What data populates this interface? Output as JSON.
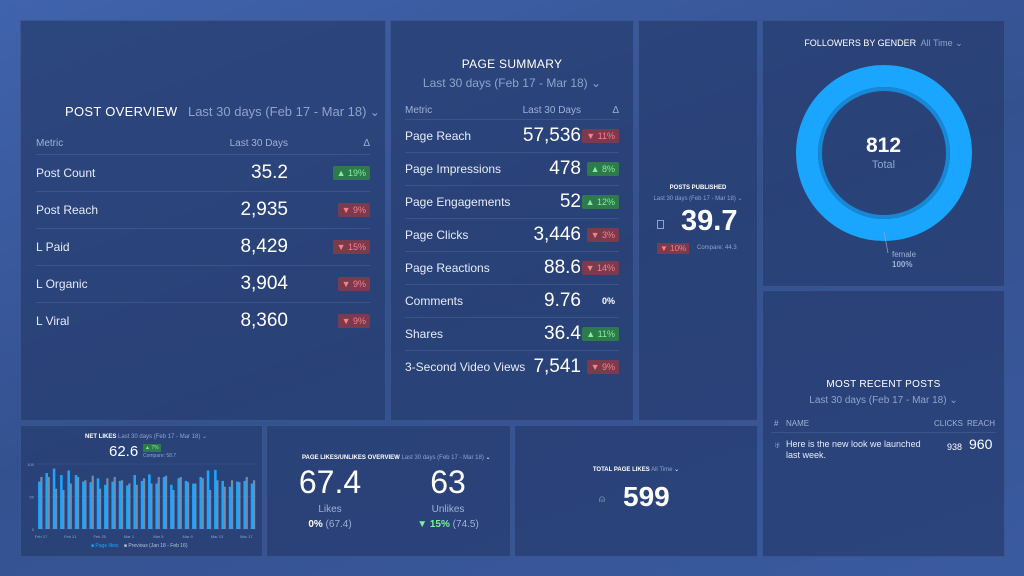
{
  "colors": {
    "accent": "#1aa6ff",
    "up": "#7ef09a",
    "down": "#ff7d86",
    "previous": "#7d8aa6"
  },
  "post_overview": {
    "title": "POST OVERVIEW",
    "range": "Last 30 days (Feb 17 - Mar 18)",
    "col_metric": "Metric",
    "col_value": "Last 30 Days",
    "col_delta": "Δ",
    "rows": [
      {
        "metric": "Post Count",
        "value": "35.2",
        "delta": "▲ 19%",
        "dir": "up"
      },
      {
        "metric": "Post Reach",
        "value": "2,935",
        "delta": "▼ 9%",
        "dir": "down"
      },
      {
        "metric": "L Paid",
        "value": "8,429",
        "delta": "▼ 15%",
        "dir": "down"
      },
      {
        "metric": "L Organic",
        "value": "3,904",
        "delta": "▼ 9%",
        "dir": "down"
      },
      {
        "metric": "L Viral",
        "value": "8,360",
        "delta": "▼ 9%",
        "dir": "down"
      }
    ]
  },
  "page_summary": {
    "title": "PAGE SUMMARY",
    "range": "Last 30 days (Feb 17 - Mar 18)",
    "col_metric": "Metric",
    "col_value": "Last 30 Days",
    "col_delta": "Δ",
    "rows": [
      {
        "metric": "Page Reach",
        "value": "57,536",
        "delta": "▼ 11%",
        "dir": "down"
      },
      {
        "metric": "Page Impressions",
        "value": "478",
        "delta": "▲ 8%",
        "dir": "up"
      },
      {
        "metric": "Page Engagements",
        "value": "52",
        "delta": "▲ 12%",
        "dir": "up"
      },
      {
        "metric": "Page Clicks",
        "value": "3,446",
        "delta": "▼ 3%",
        "dir": "down"
      },
      {
        "metric": "Page Reactions",
        "value": "88.6",
        "delta": "▼ 14%",
        "dir": "down"
      },
      {
        "metric": "Comments",
        "value": "9.76",
        "delta": "0%",
        "dir": "neutral"
      },
      {
        "metric": "Shares",
        "value": "36.4",
        "delta": "▲ 11%",
        "dir": "up"
      },
      {
        "metric": "3-Second Video Views",
        "value": "7,541",
        "delta": "▼ 9%",
        "dir": "down"
      }
    ]
  },
  "posts_published": {
    "title": "POSTS PUBLISHED",
    "range": "Last 30 days (Feb 17 - Mar 18)",
    "value": "39.7",
    "delta": "▼ 10%",
    "compare": "Compare: 44.3",
    "icon": "document-icon"
  },
  "followers_by_gender": {
    "title": "FOLLOWERS BY GENDER",
    "range": "All Time",
    "total": "812",
    "total_label": "Total",
    "segment_label": "female",
    "segment_pct": "100%",
    "segment_value": 100
  },
  "most_recent_posts": {
    "title": "MOST RECENT POSTS",
    "range": "Last 30 days (Feb 17 - Mar 18)",
    "col_num": "#",
    "col_name": "NAME",
    "col_clicks": "CLICKS",
    "col_reach": "REACH",
    "rows": [
      {
        "name": "Here is the new look we launched last week.",
        "clicks": "938",
        "reach": "960",
        "icon": "medal-icon"
      }
    ]
  },
  "net_likes": {
    "title": "NET LIKES",
    "range": "Last 30 days (Feb 17 - Mar 18)",
    "value": "62.6",
    "delta": "▲ 7%",
    "compare": "Compare: 58.7"
  },
  "likes_overview": {
    "title": "PAGE LIKES/UNLIKES OVERVIEW",
    "range": "Last 30 days (Feb 17 - Mar 18)",
    "likes": "67.4",
    "likes_label": "Likes",
    "likes_delta": "0%",
    "likes_prev": "(67.4)",
    "unlikes": "63",
    "unlikes_label": "Unlikes",
    "unlikes_delta": "▼ 15%",
    "unlikes_prev": "(74.5)"
  },
  "total_page_likes": {
    "title": "TOTAL PAGE LIKES",
    "range": "All Time",
    "value": "599",
    "icon": "user-icon"
  },
  "chart_data": {
    "type": "bar",
    "ylim": [
      0,
      100
    ],
    "yticks": [
      "0",
      "50",
      "100"
    ],
    "xticks": [
      "Feb 17",
      "Feb 21",
      "Feb 25",
      "Mar 1",
      "Mar 5",
      "Mar 9",
      "Mar 13",
      "Mar 17"
    ],
    "series": [
      {
        "name": "Page likes",
        "values": [
          73,
          86,
          93,
          83,
          90,
          83,
          73,
          72,
          78,
          68,
          73,
          74,
          67,
          83,
          74,
          84,
          70,
          80,
          68,
          78,
          74,
          70,
          80,
          90,
          91,
          74,
          65,
          73,
          74,
          70
        ]
      },
      {
        "name": "Previous (Jan 18 - Feb 16)",
        "values": [
          80,
          80,
          62,
          60,
          70,
          80,
          75,
          82,
          62,
          78,
          80,
          75,
          70,
          68,
          78,
          70,
          80,
          82,
          60,
          80,
          72,
          70,
          78,
          60,
          75,
          65,
          75,
          72,
          80,
          75
        ]
      }
    ],
    "legend": "bottom"
  }
}
